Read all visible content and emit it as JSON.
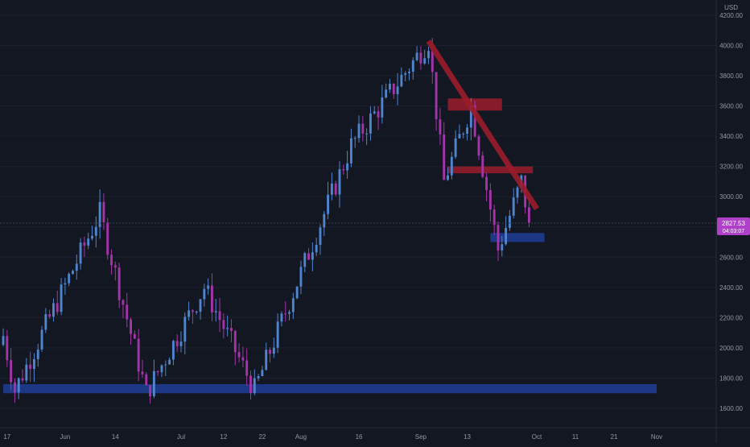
{
  "currency_label": "USD",
  "price_badge": {
    "price": "2827.53",
    "countdown": "04:03:07"
  },
  "colors": {
    "background": "#131722",
    "grid": "#1c2030",
    "axis_text": "#9598a1",
    "candle_up": "#4f84ce",
    "candle_down": "#a335a8",
    "badge": "#b03fc9",
    "resistance": "#9b1c2a",
    "support": "#1c3a8a"
  },
  "chart_data": {
    "type": "candlestick",
    "title": "",
    "xlabel": "",
    "ylabel": "",
    "y_axis": {
      "label": "USD",
      "range": [
        1500,
        4300
      ],
      "ticks": [
        1600,
        1800,
        2000,
        2200,
        2400,
        2600,
        2800,
        3000,
        3200,
        3400,
        3600,
        3800,
        4000,
        4200
      ]
    },
    "x_axis": {
      "range": [
        "2021-05-16",
        "2021-11-06"
      ],
      "ticks": [
        {
          "label": "17",
          "date": "2021-05-17"
        },
        {
          "label": "Jun",
          "date": "2021-06-01"
        },
        {
          "label": "14",
          "date": "2021-06-14"
        },
        {
          "label": "Jul",
          "date": "2021-07-01"
        },
        {
          "label": "12",
          "date": "2021-07-12"
        },
        {
          "label": "22",
          "date": "2021-07-22"
        },
        {
          "label": "Aug",
          "date": "2021-08-01"
        },
        {
          "label": "16",
          "date": "2021-08-16"
        },
        {
          "label": "Sep",
          "date": "2021-09-01"
        },
        {
          "label": "13",
          "date": "2021-09-13"
        },
        {
          "label": "Oct",
          "date": "2021-10-01"
        },
        {
          "label": "11",
          "date": "2021-10-11"
        },
        {
          "label": "21",
          "date": "2021-10-21"
        },
        {
          "label": "Nov",
          "date": "2021-11-01"
        }
      ]
    },
    "grid": false,
    "current_price": 2827.53,
    "key_points": [
      {
        "date": "2021-05-19",
        "low": 1720
      },
      {
        "date": "2021-06-10",
        "high": 2890
      },
      {
        "date": "2021-06-22",
        "low": 1700
      },
      {
        "date": "2021-07-07",
        "high": 2400
      },
      {
        "date": "2021-07-20",
        "low": 1720
      },
      {
        "date": "2021-08-14",
        "high": 3340
      },
      {
        "date": "2021-09-03",
        "high": 4030
      },
      {
        "date": "2021-09-07",
        "low": 3100
      },
      {
        "date": "2021-09-14",
        "high": 3600
      },
      {
        "date": "2021-09-21",
        "low": 2650
      },
      {
        "date": "2021-09-27",
        "high": 3100
      },
      {
        "date": "2021-09-29",
        "close": 2827.53
      }
    ],
    "annotations": [
      {
        "type": "trendline",
        "color": "resistance",
        "start": {
          "date": "2021-09-03",
          "price": 4030
        },
        "end": {
          "date": "2021-10-01",
          "price": 2920
        }
      },
      {
        "type": "zone",
        "color": "resistance",
        "from_date": "2021-09-08",
        "to_date": "2021-09-22",
        "price_low": 3570,
        "price_high": 3650
      },
      {
        "type": "zone",
        "color": "resistance",
        "from_date": "2021-09-08",
        "to_date": "2021-09-30",
        "price_low": 3155,
        "price_high": 3200
      },
      {
        "type": "zone",
        "color": "support",
        "from_date": "2021-09-19",
        "to_date": "2021-10-03",
        "price_low": 2700,
        "price_high": 2760
      },
      {
        "type": "zone",
        "color": "support",
        "from_date": "2021-05-16",
        "to_date": "2021-11-01",
        "price_low": 1700,
        "price_high": 1760
      }
    ]
  }
}
